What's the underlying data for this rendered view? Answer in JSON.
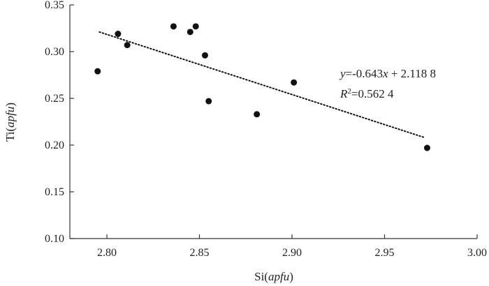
{
  "chart_data": {
    "type": "scatter",
    "title": "",
    "xlabel": {
      "prefix": "Si(",
      "italic": "apfu",
      "suffix": ")"
    },
    "ylabel": {
      "prefix": "Ti(",
      "italic": "apfu",
      "suffix": ")"
    },
    "xlim": [
      2.78,
      3.0
    ],
    "ylim": [
      0.1,
      0.35
    ],
    "xticks": [
      "2.80",
      "2.85",
      "2.90",
      "2.95",
      "3.00"
    ],
    "yticks": [
      "0.10",
      "0.15",
      "0.20",
      "0.25",
      "0.30",
      "0.35"
    ],
    "grid": false,
    "marker_color": "#111111",
    "points": [
      {
        "x": 2.795,
        "y": 0.279
      },
      {
        "x": 2.806,
        "y": 0.319
      },
      {
        "x": 2.811,
        "y": 0.307
      },
      {
        "x": 2.836,
        "y": 0.327
      },
      {
        "x": 2.845,
        "y": 0.321
      },
      {
        "x": 2.848,
        "y": 0.327
      },
      {
        "x": 2.853,
        "y": 0.296
      },
      {
        "x": 2.855,
        "y": 0.247
      },
      {
        "x": 2.881,
        "y": 0.233
      },
      {
        "x": 2.901,
        "y": 0.267
      },
      {
        "x": 2.973,
        "y": 0.197
      }
    ],
    "trendline": {
      "style": "dotted",
      "slope": -0.643,
      "intercept": 2.1188,
      "x_range": [
        2.796,
        2.972
      ]
    },
    "annotations": {
      "equation": {
        "y": "y",
        "eq1": "=-0.643",
        "x": "x",
        "eq2": " + 2.118 8"
      },
      "r2": {
        "r": "R",
        "sup": "2",
        "val": "=0.562 4"
      }
    }
  }
}
